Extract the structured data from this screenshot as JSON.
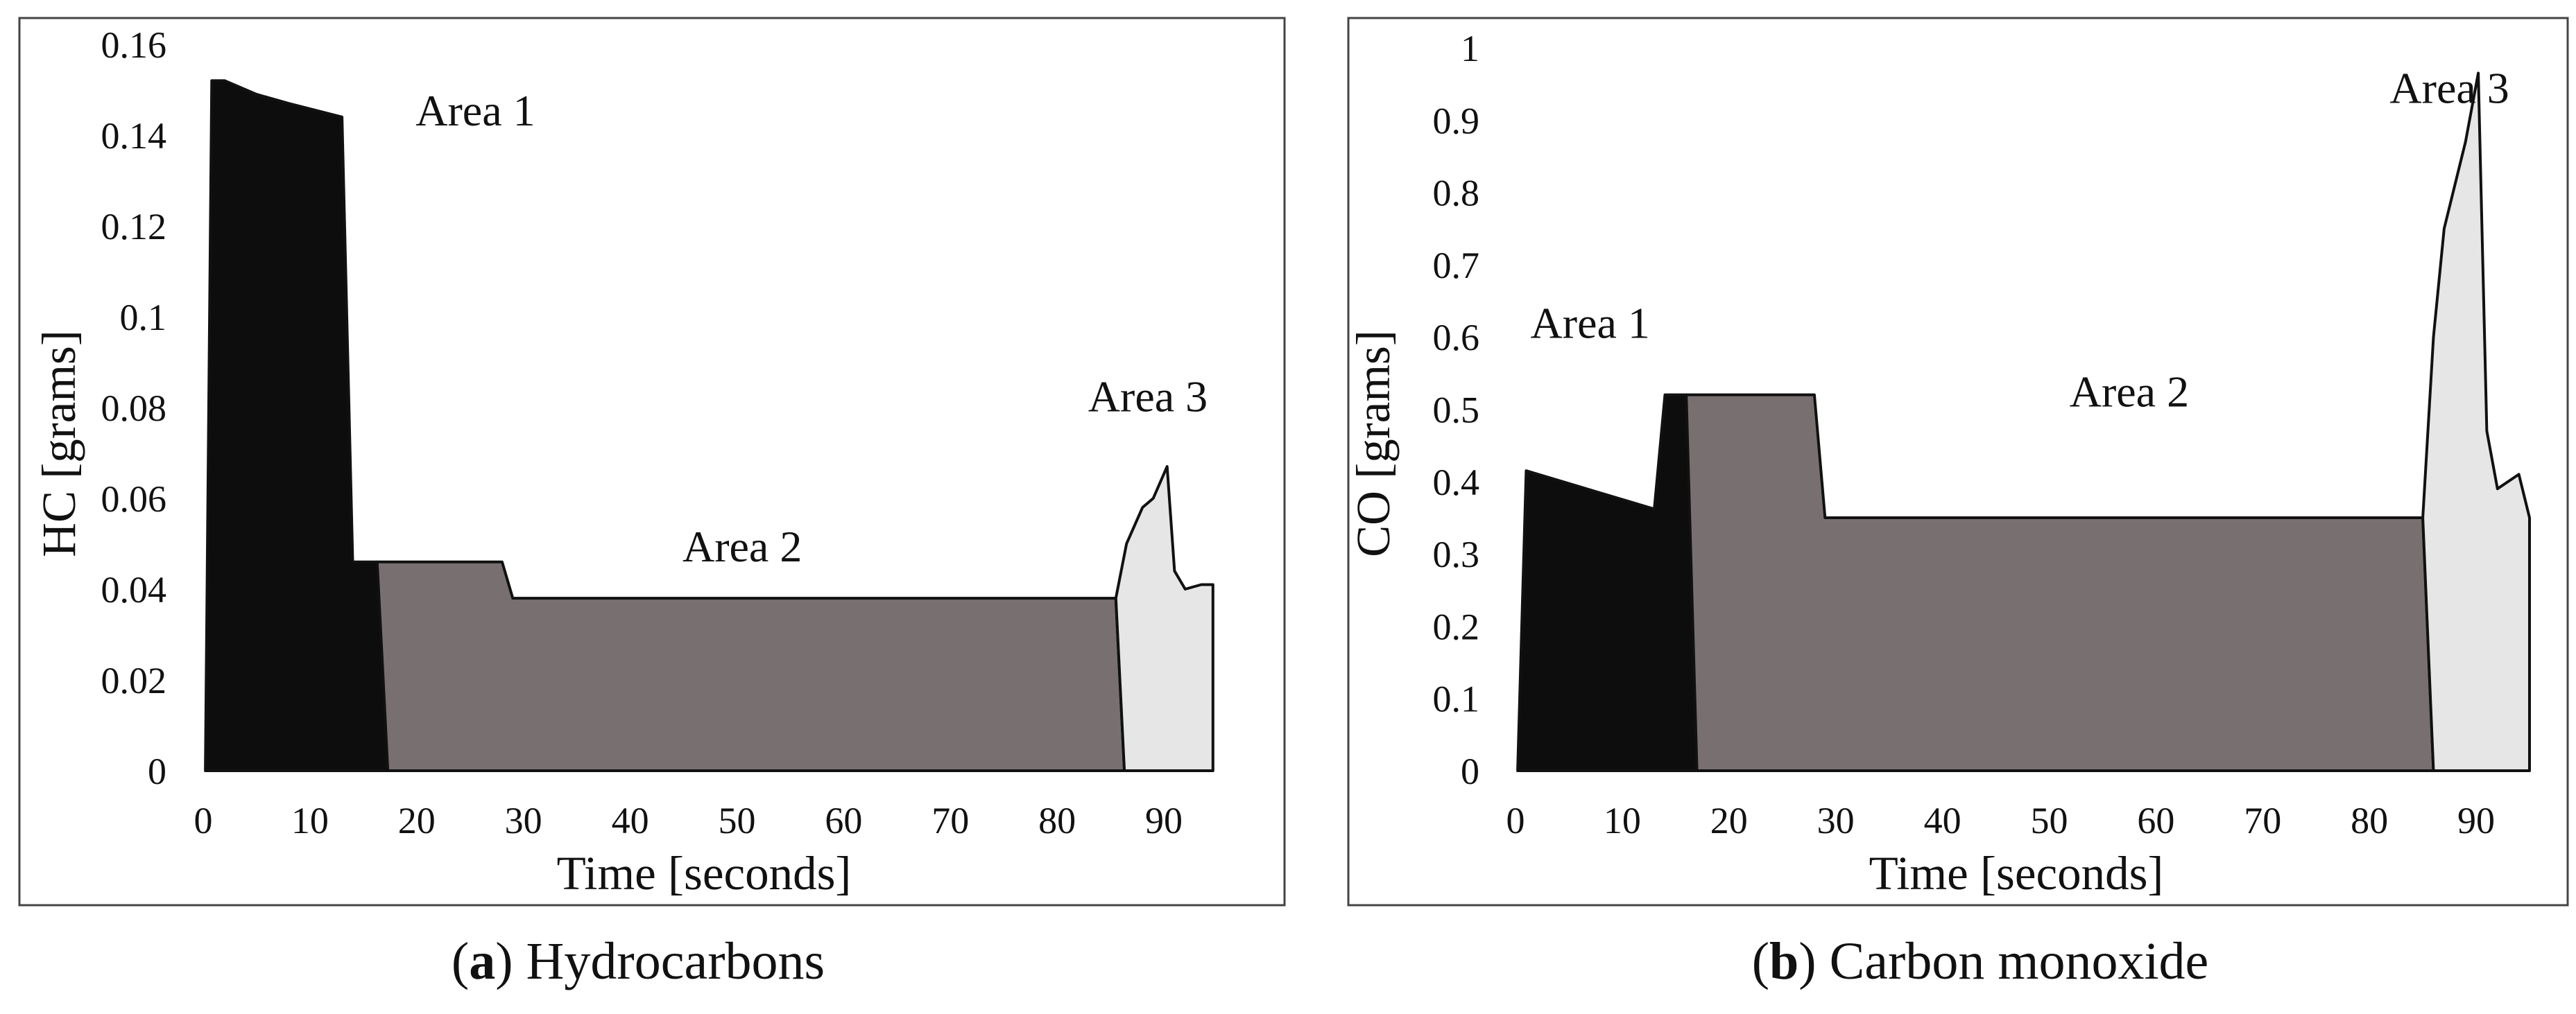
{
  "chart_data": [
    {
      "type": "area",
      "id": "hc",
      "ylabel": "HC [grams]",
      "xlabel": "Time [seconds]",
      "xlim": [
        0,
        95
      ],
      "ylim": [
        0,
        0.16
      ],
      "xticks": [
        0,
        10,
        20,
        30,
        40,
        50,
        60,
        70,
        80,
        90
      ],
      "yticks": [
        0,
        0.02,
        0.04,
        0.06,
        0.08,
        0.1,
        0.12,
        0.14,
        0.16
      ],
      "ytick_labels": [
        "0",
        "0.02",
        "0.04",
        "0.06",
        "0.08",
        "0.1",
        "0.12",
        "0.14",
        "0.16"
      ],
      "xtick_labels": [
        "0",
        "10",
        "20",
        "30",
        "40",
        "50",
        "60",
        "70",
        "80",
        "90"
      ],
      "caption": {
        "letter": "a",
        "text": " Hydrocarbons"
      },
      "areas": [
        {
          "name": "Area 1",
          "color": "#0d0d0d",
          "points": [
            [
              0.2,
              0
            ],
            [
              0.8,
              0.152
            ],
            [
              2,
              0.152
            ],
            [
              5,
              0.149
            ],
            [
              8,
              0.147
            ],
            [
              13,
              0.144
            ],
            [
              14,
              0.046
            ],
            [
              16.3,
              0.046
            ],
            [
              17.3,
              0
            ]
          ]
        },
        {
          "name": "Area 2",
          "color": "#787070",
          "points": [
            [
              17.3,
              0
            ],
            [
              16.3,
              0.046
            ],
            [
              28,
              0.046
            ],
            [
              29,
              0.038
            ],
            [
              30,
              0.038
            ],
            [
              85.5,
              0.038
            ],
            [
              86.3,
              0
            ]
          ]
        },
        {
          "name": "Area 3",
          "color": "#e6e6e6",
          "points": [
            [
              86.3,
              0
            ],
            [
              85.5,
              0.038
            ],
            [
              86.5,
              0.05
            ],
            [
              88,
              0.058
            ],
            [
              89,
              0.06
            ],
            [
              90.3,
              0.067
            ],
            [
              91,
              0.044
            ],
            [
              92,
              0.04
            ],
            [
              93.5,
              0.041
            ],
            [
              94.6,
              0.041
            ],
            [
              94.6,
              0
            ]
          ]
        }
      ],
      "annotations": [
        {
          "text": "Area 1",
          "x": 25.5,
          "y": 0.1455
        },
        {
          "text": "Area 2",
          "x": 50.5,
          "y": 0.0495
        },
        {
          "text": "Area 3",
          "x": 88.5,
          "y": 0.0825
        }
      ]
    },
    {
      "type": "area",
      "id": "co",
      "ylabel": "CO [grams]",
      "xlabel": "Time [seconds]",
      "xlim": [
        0,
        95
      ],
      "ylim": [
        0,
        1
      ],
      "xticks": [
        0,
        10,
        20,
        30,
        40,
        50,
        60,
        70,
        80,
        90
      ],
      "yticks": [
        0,
        0.1,
        0.2,
        0.3,
        0.4,
        0.5,
        0.6,
        0.7,
        0.8,
        0.9,
        1
      ],
      "ytick_labels": [
        "0",
        "0.1",
        "0.2",
        "0.3",
        "0.4",
        "0.5",
        "0.6",
        "0.7",
        "0.8",
        "0.9",
        "1"
      ],
      "xtick_labels": [
        "0",
        "10",
        "20",
        "30",
        "40",
        "50",
        "60",
        "70",
        "80",
        "90"
      ],
      "caption": {
        "letter": "b",
        "text": " Carbon monoxide"
      },
      "areas": [
        {
          "name": "Area 1",
          "color": "#0d0d0d",
          "points": [
            [
              0.2,
              0
            ],
            [
              1,
              0.415
            ],
            [
              13,
              0.362
            ],
            [
              14,
              0.52
            ],
            [
              16,
              0.52
            ],
            [
              17,
              0
            ]
          ]
        },
        {
          "name": "Area 2",
          "color": "#787070",
          "points": [
            [
              17,
              0
            ],
            [
              16,
              0.52
            ],
            [
              28,
              0.52
            ],
            [
              29,
              0.35
            ],
            [
              85,
              0.35
            ],
            [
              86,
              0
            ]
          ]
        },
        {
          "name": "Area 3",
          "color": "#e6e6e6",
          "points": [
            [
              86,
              0
            ],
            [
              85,
              0.35
            ],
            [
              86,
              0.6
            ],
            [
              87,
              0.75
            ],
            [
              89,
              0.87
            ],
            [
              90.2,
              0.965
            ],
            [
              91,
              0.47
            ],
            [
              92,
              0.39
            ],
            [
              94,
              0.41
            ],
            [
              95,
              0.35
            ],
            [
              95,
              0
            ]
          ]
        }
      ],
      "annotations": [
        {
          "text": "Area 1",
          "x": 7,
          "y": 0.62
        },
        {
          "text": "Area 2",
          "x": 57.5,
          "y": 0.525
        },
        {
          "text": "Area 3",
          "x": 87.5,
          "y": 0.945
        }
      ]
    }
  ]
}
